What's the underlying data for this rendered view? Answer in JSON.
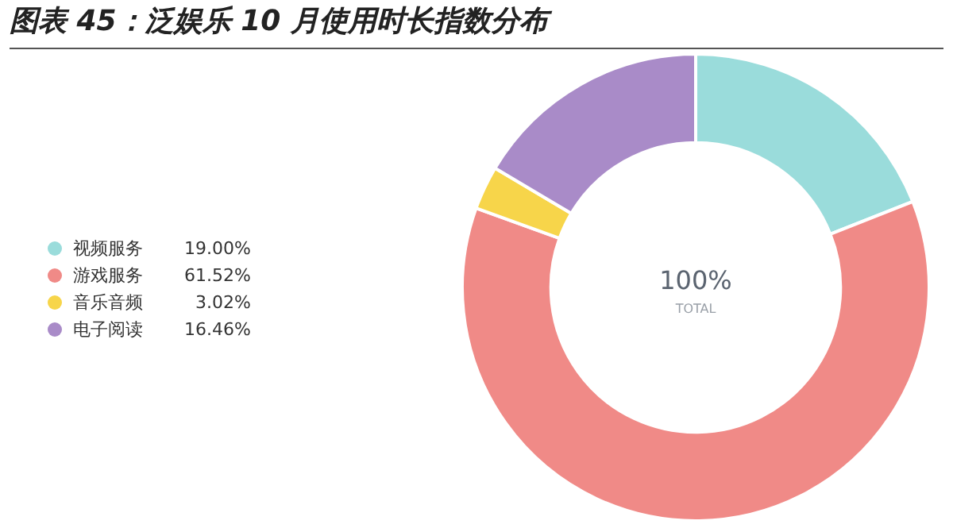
{
  "chart_data": {
    "type": "donut",
    "title": "图表 45：泛娱乐 10 月使用时长指数分布",
    "categories": [
      "视频服务",
      "游戏服务",
      "音乐音频",
      "电子阅读"
    ],
    "values": [
      19.0,
      61.52,
      3.02,
      16.46
    ],
    "value_labels": [
      "19.00%",
      "61.52%",
      "3.02%",
      "16.46%"
    ],
    "colors": [
      "#9adcdb",
      "#f08a87",
      "#f7d54a",
      "#a98bc8"
    ],
    "annotations": [
      "100%",
      "TOTAL"
    ],
    "legend": "left"
  }
}
